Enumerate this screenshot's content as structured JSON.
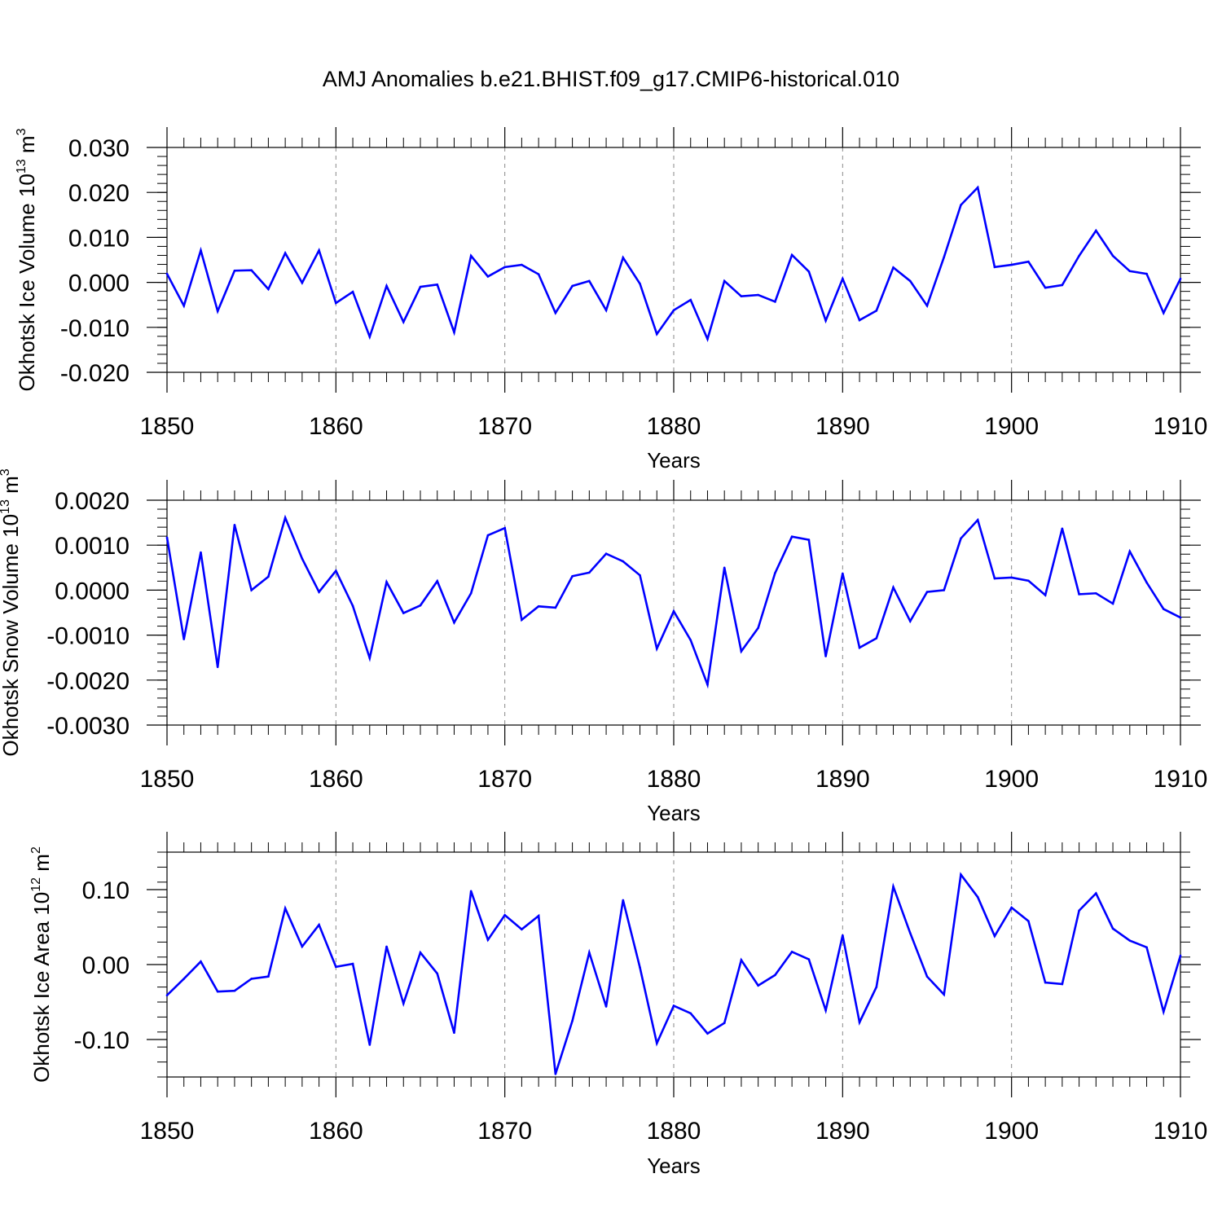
{
  "title": "AMJ Anomalies b.e21.BHIST.f09_g17.CMIP6-historical.010",
  "line_color": "#0000ff",
  "axis_color": "#000000",
  "grid_color": "#888888",
  "chart_data": [
    {
      "type": "line",
      "ylabel": "Okhotsk Ice Volume 10",
      "ylabel_exp": "13",
      "ylabel_unit": " m",
      "ylabel_unit_exp": "3",
      "xlabel": "Years",
      "xlim": [
        1850,
        1910
      ],
      "ylim": [
        -0.02,
        0.03
      ],
      "yticks": [
        -0.02,
        -0.01,
        0.0,
        0.01,
        0.02,
        0.03
      ],
      "yticklabels": [
        "-0.020",
        "-0.010",
        "0.000",
        "0.010",
        "0.020",
        "0.030"
      ],
      "yminor_step": 0.002,
      "xticks": [
        1850,
        1860,
        1870,
        1880,
        1890,
        1900,
        1910
      ],
      "xticklabels": [
        "1850",
        "1860",
        "1870",
        "1880",
        "1890",
        "1900",
        "1910"
      ],
      "x_start": 1850,
      "series": [
        {
          "name": "Okhotsk Ice Volume",
          "values": [
            0.0019,
            -0.0052,
            0.0071,
            -0.0064,
            0.0026,
            0.0027,
            -0.0015,
            0.0065,
            -0.0001,
            0.0071,
            -0.0046,
            -0.0021,
            -0.0121,
            -0.0008,
            -0.0088,
            -0.001,
            -0.0005,
            -0.0111,
            0.0059,
            0.0013,
            0.0034,
            0.0039,
            0.0018,
            -0.0068,
            -0.0008,
            0.0003,
            -0.0062,
            0.0055,
            -0.0003,
            -0.0115,
            -0.0062,
            -0.0039,
            -0.0126,
            0.0003,
            -0.0031,
            -0.0028,
            -0.0043,
            0.0061,
            0.0024,
            -0.0085,
            0.0008,
            -0.0084,
            -0.0063,
            0.0033,
            0.0003,
            -0.0052,
            0.0056,
            0.0172,
            0.0211,
            0.0034,
            0.0039,
            0.0046,
            -0.0012,
            -0.0006,
            0.0059,
            0.0115,
            0.0059,
            0.0025,
            0.0019,
            -0.0068,
            0.0008
          ]
        }
      ]
    },
    {
      "type": "line",
      "ylabel": "Okhotsk Snow Volume 10",
      "ylabel_exp": "13",
      "ylabel_unit": " m",
      "ylabel_unit_exp": "3",
      "xlabel": "Years",
      "xlim": [
        1850,
        1910
      ],
      "ylim": [
        -0.003,
        0.002
      ],
      "yticks": [
        -0.003,
        -0.002,
        -0.001,
        0.0,
        0.001,
        0.002
      ],
      "yticklabels": [
        "-0.0030",
        "-0.0020",
        "-0.0010",
        "0.0000",
        "0.0010",
        "0.0020"
      ],
      "yminor_step": 0.0002,
      "xticks": [
        1850,
        1860,
        1870,
        1880,
        1890,
        1900,
        1910
      ],
      "xticklabels": [
        "1850",
        "1860",
        "1870",
        "1880",
        "1890",
        "1900",
        "1910"
      ],
      "x_start": 1850,
      "series": [
        {
          "name": "Okhotsk Snow Volume",
          "values": [
            0.00117,
            -0.00109,
            0.00084,
            -0.00171,
            0.00145,
            0.0,
            0.0003,
            0.00161,
            0.0007,
            -4e-05,
            0.00043,
            -0.00035,
            -0.00151,
            0.00018,
            -0.00051,
            -0.00034,
            0.0002,
            -0.00072,
            -7e-05,
            0.00122,
            0.00138,
            -0.00066,
            -0.00036,
            -0.00039,
            0.00031,
            0.00039,
            0.00081,
            0.00064,
            0.00033,
            -0.0013,
            -0.00047,
            -0.00111,
            -0.0021,
            0.0005,
            -0.00136,
            -0.00084,
            0.00038,
            0.00119,
            0.00112,
            -0.00147,
            0.00037,
            -0.00128,
            -0.00107,
            6e-05,
            -0.00069,
            -4e-05,
            0.0,
            0.00115,
            0.00156,
            0.00026,
            0.00028,
            0.00021,
            -0.00011,
            0.00137,
            -9e-05,
            -7e-05,
            -0.0003,
            0.00086,
            0.00017,
            -0.00042,
            -0.00061
          ]
        }
      ]
    },
    {
      "type": "line",
      "ylabel": "Okhotsk Ice Area 10",
      "ylabel_exp": "12",
      "ylabel_unit": " m",
      "ylabel_unit_exp": "2",
      "xlabel": "Years",
      "xlim": [
        1850,
        1910
      ],
      "ylim": [
        -0.15,
        0.15
      ],
      "yticks": [
        -0.1,
        0.0,
        0.1
      ],
      "yticklabels": [
        "-0.10",
        "0.00",
        "0.10"
      ],
      "yminor_step": 0.02,
      "xticks": [
        1850,
        1860,
        1870,
        1880,
        1890,
        1900,
        1910
      ],
      "xticklabels": [
        "1850",
        "1860",
        "1870",
        "1880",
        "1890",
        "1900",
        "1910"
      ],
      "x_start": 1850,
      "series": [
        {
          "name": "Okhotsk Ice Area",
          "values": [
            -0.041,
            -0.019,
            0.004,
            -0.036,
            -0.035,
            -0.019,
            -0.016,
            0.075,
            0.024,
            0.053,
            -0.003,
            0.001,
            -0.107,
            0.024,
            -0.052,
            0.016,
            -0.012,
            -0.091,
            0.098,
            0.033,
            0.066,
            0.047,
            0.065,
            -0.146,
            -0.075,
            0.016,
            -0.056,
            0.086,
            -0.004,
            -0.105,
            -0.055,
            -0.065,
            -0.092,
            -0.078,
            0.006,
            -0.028,
            -0.014,
            0.017,
            0.007,
            -0.061,
            0.039,
            -0.077,
            -0.03,
            0.104,
            0.042,
            -0.016,
            -0.04,
            0.12,
            0.09,
            0.038,
            0.076,
            0.058,
            -0.024,
            -0.026,
            0.072,
            0.095,
            0.048,
            0.032,
            0.023,
            -0.063,
            0.012
          ]
        }
      ]
    }
  ]
}
